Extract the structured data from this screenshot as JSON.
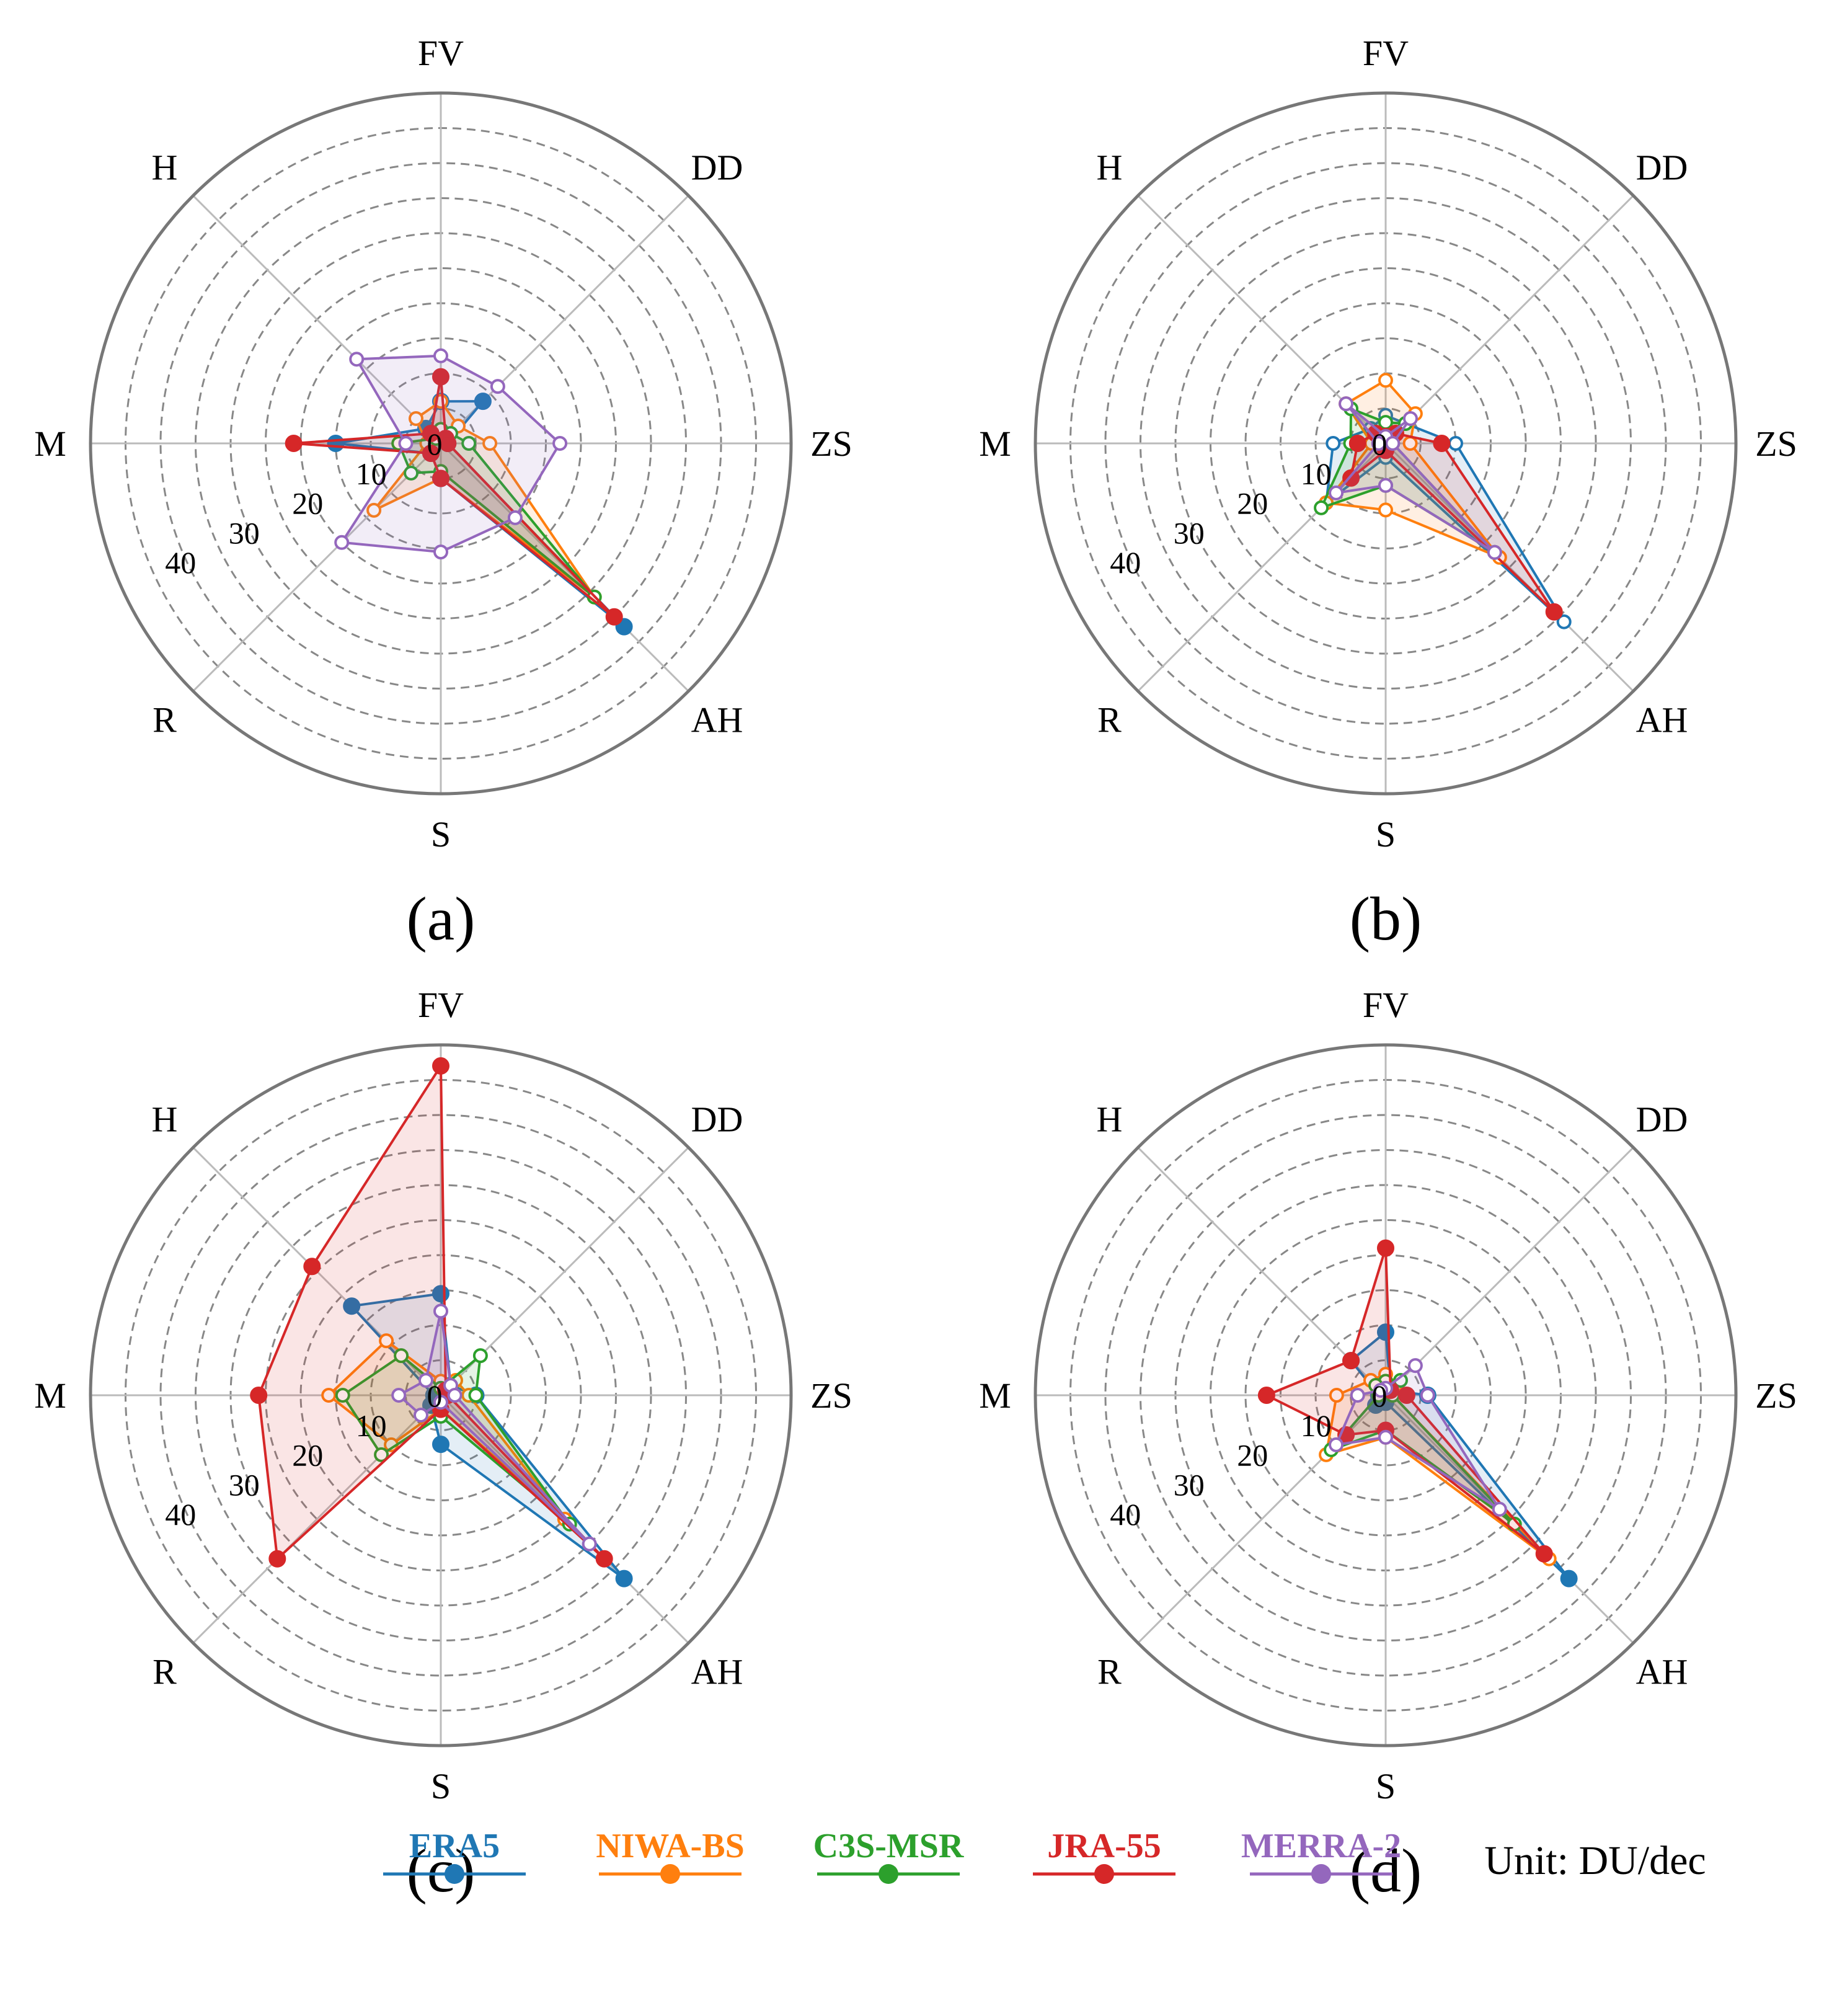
{
  "chart_data": [
    {
      "type": "radar",
      "panel_label": "(a)",
      "axes": [
        "FV",
        "DD",
        "ZS",
        "AH",
        "S",
        "R",
        "M",
        "H"
      ],
      "radial_ticks": [
        "0",
        "10",
        "20",
        "30",
        "40"
      ],
      "rlim": [
        0,
        50
      ],
      "grid": true,
      "series": [
        {
          "name": "ERA5",
          "color": "#1f77b4",
          "marker": "filled",
          "values": [
            6,
            8.5,
            1,
            37,
            5,
            2,
            15,
            3
          ]
        },
        {
          "name": "NIWA-BS",
          "color": "#ff7f0e",
          "marker": "open",
          "values": [
            6,
            3.5,
            7,
            31,
            5,
            13.5,
            2,
            5
          ]
        },
        {
          "name": "C3S-MSR",
          "color": "#2ca02c",
          "marker": "open",
          "values": [
            2,
            2,
            4,
            31,
            4,
            6,
            6,
            1
          ]
        },
        {
          "name": "JRA-55",
          "color": "#d62728",
          "marker": "filled",
          "values": [
            9.5,
            1,
            1,
            35,
            5,
            2,
            21,
            2
          ]
        },
        {
          "name": "MERRA-2",
          "color": "#9467bd",
          "marker": "open",
          "values": [
            12.5,
            11.5,
            17,
            15,
            15.5,
            20,
            5,
            17
          ]
        }
      ]
    },
    {
      "type": "radar",
      "panel_label": "(b)",
      "axes": [
        "FV",
        "DD",
        "ZS",
        "AH",
        "S",
        "R",
        "M",
        "H"
      ],
      "radial_ticks": [
        "0",
        "10",
        "20",
        "30",
        "40"
      ],
      "rlim": [
        0,
        50
      ],
      "grid": true,
      "series": [
        {
          "name": "ERA5",
          "color": "#1f77b4",
          "marker": "open",
          "values": [
            4,
            4,
            10,
            36,
            2,
            12,
            7.5,
            3
          ]
        },
        {
          "name": "NIWA-BS",
          "color": "#ff7f0e",
          "marker": "open",
          "values": [
            9,
            6,
            3.5,
            23,
            9.5,
            12,
            2,
            8
          ]
        },
        {
          "name": "C3S-MSR",
          "color": "#2ca02c",
          "marker": "open",
          "values": [
            3,
            4,
            1,
            22,
            6,
            13,
            5,
            7
          ]
        },
        {
          "name": "JRA-55",
          "color": "#d62728",
          "marker": "filled",
          "values": [
            1,
            2,
            8,
            34,
            1,
            7,
            4,
            2
          ]
        },
        {
          "name": "MERRA-2",
          "color": "#9467bd",
          "marker": "open",
          "values": [
            1,
            5,
            1,
            22,
            6,
            10,
            1,
            8
          ]
        }
      ]
    },
    {
      "type": "radar",
      "panel_label": "(c)",
      "axes": [
        "FV",
        "DD",
        "ZS",
        "AH",
        "S",
        "R",
        "M",
        "H"
      ],
      "radial_ticks": [
        "0",
        "10",
        "20",
        "30",
        "40"
      ],
      "rlim": [
        0,
        50
      ],
      "grid": true,
      "series": [
        {
          "name": "ERA5",
          "color": "#1f77b4",
          "marker": "filled",
          "values": [
            14.5,
            2,
            5,
            37,
            7,
            2,
            1,
            18
          ]
        },
        {
          "name": "NIWA-BS",
          "color": "#ff7f0e",
          "marker": "open",
          "values": [
            2,
            3,
            4,
            25,
            2,
            10,
            16,
            11
          ]
        },
        {
          "name": "C3S-MSR",
          "color": "#2ca02c",
          "marker": "open",
          "values": [
            1,
            8,
            5,
            26,
            3,
            12,
            14,
            8
          ]
        },
        {
          "name": "JRA-55",
          "color": "#d62728",
          "marker": "filled",
          "values": [
            47,
            1,
            1,
            33,
            2,
            33,
            26,
            26
          ]
        },
        {
          "name": "MERRA-2",
          "color": "#9467bd",
          "marker": "open",
          "values": [
            12,
            2,
            2,
            30,
            1,
            4,
            6,
            3
          ]
        }
      ]
    },
    {
      "type": "radar",
      "panel_label": "(d)",
      "axes": [
        "FV",
        "DD",
        "ZS",
        "AH",
        "S",
        "R",
        "M",
        "H"
      ],
      "radial_ticks": [
        "0",
        "10",
        "20",
        "30",
        "40"
      ],
      "rlim": [
        0,
        50
      ],
      "grid": true,
      "series": [
        {
          "name": "ERA5",
          "color": "#1f77b4",
          "marker": "filled",
          "values": [
            9,
            1,
            6,
            37,
            1,
            2,
            1,
            7
          ]
        },
        {
          "name": "NIWA-BS",
          "color": "#ff7f0e",
          "marker": "open",
          "values": [
            3,
            2,
            1,
            33,
            6,
            12,
            7,
            3
          ]
        },
        {
          "name": "C3S-MSR",
          "color": "#2ca02c",
          "marker": "open",
          "values": [
            2,
            3,
            1,
            26,
            5,
            11,
            1,
            2
          ]
        },
        {
          "name": "JRA-55",
          "color": "#d62728",
          "marker": "filled",
          "values": [
            21,
            1,
            3,
            32,
            5,
            8,
            17,
            7
          ]
        },
        {
          "name": "MERRA-2",
          "color": "#9467bd",
          "marker": "open",
          "values": [
            1,
            6,
            6,
            23,
            6,
            10,
            4,
            1
          ]
        }
      ]
    }
  ],
  "legend": {
    "placement": "bottom",
    "entries": [
      {
        "name": "ERA5",
        "color": "#1f77b4"
      },
      {
        "name": "NIWA-BS",
        "color": "#ff7f0e"
      },
      {
        "name": "C3S-MSR",
        "color": "#2ca02c"
      },
      {
        "name": "JRA-55",
        "color": "#d62728"
      },
      {
        "name": "MERRA-2",
        "color": "#9467bd"
      }
    ]
  },
  "unit_label": "Unit: DU/dec"
}
